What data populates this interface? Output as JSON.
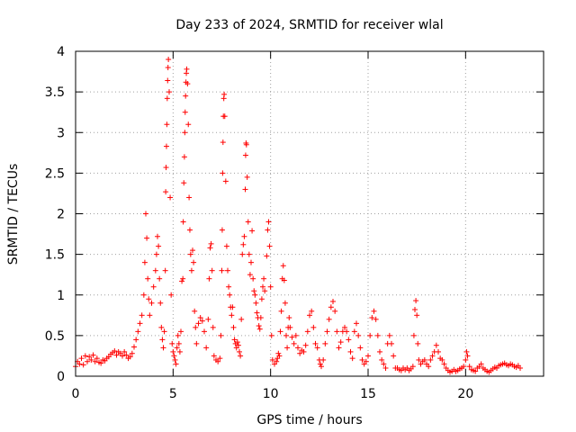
{
  "chart_data": {
    "type": "scatter",
    "title": "Day 233 of 2024, SRMTID for receiver wlal",
    "xlabel": "GPS time / hours",
    "ylabel": "SRMTID / TECUs",
    "xlim": [
      0,
      24
    ],
    "ylim": [
      0,
      4
    ],
    "xticks": [
      "0",
      "5",
      "10",
      "15",
      "20"
    ],
    "yticks": [
      "0",
      "0.5",
      "1",
      "1.5",
      "2",
      "2.5",
      "3",
      "3.5",
      "4"
    ],
    "grid": true,
    "marker": "+",
    "color": "#ff0000",
    "series": [
      {
        "name": "SRMTID",
        "points": [
          [
            0.0,
            0.12
          ],
          [
            0.1,
            0.18
          ],
          [
            0.2,
            0.15
          ],
          [
            0.3,
            0.22
          ],
          [
            0.4,
            0.14
          ],
          [
            0.5,
            0.25
          ],
          [
            0.6,
            0.18
          ],
          [
            0.7,
            0.24
          ],
          [
            0.8,
            0.2
          ],
          [
            0.9,
            0.26
          ],
          [
            1.0,
            0.18
          ],
          [
            1.1,
            0.22
          ],
          [
            1.2,
            0.17
          ],
          [
            1.3,
            0.16
          ],
          [
            1.4,
            0.2
          ],
          [
            1.5,
            0.19
          ],
          [
            1.6,
            0.22
          ],
          [
            1.7,
            0.24
          ],
          [
            1.8,
            0.27
          ],
          [
            1.9,
            0.29
          ],
          [
            2.0,
            0.31
          ],
          [
            2.1,
            0.26
          ],
          [
            2.2,
            0.3
          ],
          [
            2.3,
            0.28
          ],
          [
            2.4,
            0.25
          ],
          [
            2.5,
            0.3
          ],
          [
            2.6,
            0.26
          ],
          [
            2.7,
            0.22
          ],
          [
            2.8,
            0.24
          ],
          [
            2.9,
            0.28
          ],
          [
            3.0,
            0.36
          ],
          [
            3.1,
            0.45
          ],
          [
            3.2,
            0.55
          ],
          [
            3.3,
            0.65
          ],
          [
            3.4,
            0.75
          ],
          [
            3.5,
            1.0
          ],
          [
            3.55,
            1.4
          ],
          [
            3.6,
            2.0
          ],
          [
            3.65,
            1.7
          ],
          [
            3.7,
            1.2
          ],
          [
            3.75,
            0.95
          ],
          [
            3.8,
            0.75
          ],
          [
            3.9,
            0.9
          ],
          [
            4.0,
            1.1
          ],
          [
            4.1,
            1.3
          ],
          [
            4.15,
            1.5
          ],
          [
            4.2,
            1.72
          ],
          [
            4.25,
            1.6
          ],
          [
            4.3,
            1.2
          ],
          [
            4.35,
            0.9
          ],
          [
            4.4,
            0.6
          ],
          [
            4.45,
            0.45
          ],
          [
            4.5,
            0.35
          ],
          [
            4.55,
            0.55
          ],
          [
            4.6,
            1.3
          ],
          [
            4.62,
            2.27
          ],
          [
            4.64,
            2.57
          ],
          [
            4.66,
            2.83
          ],
          [
            4.68,
            3.1
          ],
          [
            4.7,
            3.42
          ],
          [
            4.72,
            3.64
          ],
          [
            4.74,
            3.8
          ],
          [
            4.76,
            3.9
          ],
          [
            4.8,
            3.5
          ],
          [
            4.85,
            2.2
          ],
          [
            4.9,
            1.0
          ],
          [
            4.95,
            0.4
          ],
          [
            5.0,
            0.3
          ],
          [
            5.05,
            0.25
          ],
          [
            5.1,
            0.2
          ],
          [
            5.15,
            0.15
          ],
          [
            5.2,
            0.35
          ],
          [
            5.25,
            0.5
          ],
          [
            5.3,
            0.4
          ],
          [
            5.35,
            0.3
          ],
          [
            5.4,
            0.55
          ],
          [
            5.45,
            1.17
          ],
          [
            5.5,
            1.2
          ],
          [
            5.52,
            1.9
          ],
          [
            5.55,
            2.38
          ],
          [
            5.58,
            2.7
          ],
          [
            5.6,
            3.0
          ],
          [
            5.62,
            3.25
          ],
          [
            5.64,
            3.45
          ],
          [
            5.66,
            3.62
          ],
          [
            5.68,
            3.73
          ],
          [
            5.7,
            3.78
          ],
          [
            5.74,
            3.6
          ],
          [
            5.78,
            3.1
          ],
          [
            5.82,
            2.2
          ],
          [
            5.86,
            1.8
          ],
          [
            5.9,
            1.5
          ],
          [
            5.95,
            1.3
          ],
          [
            6.0,
            1.55
          ],
          [
            6.05,
            1.4
          ],
          [
            6.1,
            0.8
          ],
          [
            6.15,
            0.6
          ],
          [
            6.2,
            0.4
          ],
          [
            6.3,
            0.65
          ],
          [
            6.4,
            0.72
          ],
          [
            6.5,
            0.68
          ],
          [
            6.6,
            0.55
          ],
          [
            6.7,
            0.35
          ],
          [
            6.8,
            0.7
          ],
          [
            6.85,
            1.2
          ],
          [
            6.9,
            1.58
          ],
          [
            6.95,
            1.63
          ],
          [
            7.0,
            1.3
          ],
          [
            7.05,
            0.6
          ],
          [
            7.1,
            0.25
          ],
          [
            7.2,
            0.2
          ],
          [
            7.3,
            0.18
          ],
          [
            7.4,
            0.22
          ],
          [
            7.45,
            0.5
          ],
          [
            7.5,
            1.3
          ],
          [
            7.52,
            1.8
          ],
          [
            7.54,
            2.5
          ],
          [
            7.56,
            2.88
          ],
          [
            7.58,
            3.2
          ],
          [
            7.6,
            3.42
          ],
          [
            7.62,
            3.47
          ],
          [
            7.65,
            3.2
          ],
          [
            7.7,
            2.4
          ],
          [
            7.75,
            1.6
          ],
          [
            7.8,
            1.3
          ],
          [
            7.85,
            1.1
          ],
          [
            7.9,
            1.0
          ],
          [
            7.95,
            0.85
          ],
          [
            8.0,
            0.75
          ],
          [
            8.05,
            0.85
          ],
          [
            8.1,
            0.6
          ],
          [
            8.15,
            0.45
          ],
          [
            8.2,
            0.4
          ],
          [
            8.25,
            0.35
          ],
          [
            8.3,
            0.42
          ],
          [
            8.35,
            0.38
          ],
          [
            8.4,
            0.3
          ],
          [
            8.45,
            0.25
          ],
          [
            8.5,
            0.7
          ],
          [
            8.55,
            1.5
          ],
          [
            8.6,
            1.62
          ],
          [
            8.65,
            1.72
          ],
          [
            8.7,
            2.3
          ],
          [
            8.72,
            2.72
          ],
          [
            8.74,
            2.87
          ],
          [
            8.76,
            2.85
          ],
          [
            8.8,
            2.45
          ],
          [
            8.85,
            1.9
          ],
          [
            8.9,
            1.5
          ],
          [
            8.95,
            1.25
          ],
          [
            9.0,
            1.4
          ],
          [
            9.05,
            1.79
          ],
          [
            9.1,
            1.2
          ],
          [
            9.15,
            1.05
          ],
          [
            9.2,
            1.0
          ],
          [
            9.25,
            0.9
          ],
          [
            9.3,
            0.78
          ],
          [
            9.35,
            0.72
          ],
          [
            9.4,
            0.62
          ],
          [
            9.45,
            0.58
          ],
          [
            9.5,
            0.72
          ],
          [
            9.55,
            0.95
          ],
          [
            9.6,
            1.1
          ],
          [
            9.65,
            1.2
          ],
          [
            9.7,
            1.05
          ],
          [
            9.8,
            1.48
          ],
          [
            9.85,
            1.8
          ],
          [
            9.9,
            1.9
          ],
          [
            9.95,
            1.6
          ],
          [
            10.0,
            1.1
          ],
          [
            10.05,
            0.5
          ],
          [
            10.1,
            0.2
          ],
          [
            10.2,
            0.15
          ],
          [
            10.3,
            0.18
          ],
          [
            10.35,
            0.22
          ],
          [
            10.4,
            0.28
          ],
          [
            10.45,
            0.25
          ],
          [
            10.5,
            0.55
          ],
          [
            10.55,
            0.8
          ],
          [
            10.6,
            1.2
          ],
          [
            10.65,
            1.36
          ],
          [
            10.7,
            1.18
          ],
          [
            10.75,
            0.9
          ],
          [
            10.8,
            0.5
          ],
          [
            10.85,
            0.35
          ],
          [
            10.9,
            0.6
          ],
          [
            10.95,
            0.72
          ],
          [
            11.0,
            0.6
          ],
          [
            11.1,
            0.48
          ],
          [
            11.2,
            0.4
          ],
          [
            11.3,
            0.5
          ],
          [
            11.4,
            0.35
          ],
          [
            11.5,
            0.28
          ],
          [
            11.6,
            0.32
          ],
          [
            11.7,
            0.3
          ],
          [
            11.8,
            0.38
          ],
          [
            11.9,
            0.55
          ],
          [
            12.0,
            0.75
          ],
          [
            12.1,
            0.8
          ],
          [
            12.2,
            0.6
          ],
          [
            12.3,
            0.4
          ],
          [
            12.4,
            0.35
          ],
          [
            12.5,
            0.2
          ],
          [
            12.55,
            0.15
          ],
          [
            12.6,
            0.12
          ],
          [
            12.7,
            0.2
          ],
          [
            12.8,
            0.4
          ],
          [
            12.9,
            0.55
          ],
          [
            13.0,
            0.7
          ],
          [
            13.1,
            0.85
          ],
          [
            13.2,
            0.92
          ],
          [
            13.3,
            0.8
          ],
          [
            13.4,
            0.55
          ],
          [
            13.5,
            0.35
          ],
          [
            13.6,
            0.42
          ],
          [
            13.7,
            0.55
          ],
          [
            13.8,
            0.6
          ],
          [
            13.9,
            0.55
          ],
          [
            14.0,
            0.45
          ],
          [
            14.1,
            0.3
          ],
          [
            14.2,
            0.22
          ],
          [
            14.3,
            0.55
          ],
          [
            14.4,
            0.65
          ],
          [
            14.5,
            0.5
          ],
          [
            14.6,
            0.35
          ],
          [
            14.7,
            0.2
          ],
          [
            14.8,
            0.15
          ],
          [
            14.9,
            0.18
          ],
          [
            15.0,
            0.25
          ],
          [
            15.1,
            0.5
          ],
          [
            15.2,
            0.72
          ],
          [
            15.3,
            0.8
          ],
          [
            15.4,
            0.7
          ],
          [
            15.5,
            0.5
          ],
          [
            15.6,
            0.3
          ],
          [
            15.7,
            0.2
          ],
          [
            15.8,
            0.15
          ],
          [
            15.9,
            0.1
          ],
          [
            16.0,
            0.4
          ],
          [
            16.1,
            0.5
          ],
          [
            16.2,
            0.4
          ],
          [
            16.3,
            0.25
          ],
          [
            16.4,
            0.1
          ],
          [
            16.5,
            0.1
          ],
          [
            16.6,
            0.08
          ],
          [
            16.7,
            0.07
          ],
          [
            16.8,
            0.1
          ],
          [
            16.9,
            0.08
          ],
          [
            17.0,
            0.1
          ],
          [
            17.1,
            0.07
          ],
          [
            17.2,
            0.09
          ],
          [
            17.3,
            0.12
          ],
          [
            17.35,
            0.5
          ],
          [
            17.4,
            0.82
          ],
          [
            17.45,
            0.93
          ],
          [
            17.5,
            0.75
          ],
          [
            17.55,
            0.4
          ],
          [
            17.6,
            0.2
          ],
          [
            17.7,
            0.15
          ],
          [
            17.8,
            0.18
          ],
          [
            17.9,
            0.2
          ],
          [
            18.0,
            0.15
          ],
          [
            18.1,
            0.12
          ],
          [
            18.2,
            0.2
          ],
          [
            18.3,
            0.25
          ],
          [
            18.4,
            0.3
          ],
          [
            18.5,
            0.38
          ],
          [
            18.6,
            0.3
          ],
          [
            18.7,
            0.22
          ],
          [
            18.8,
            0.2
          ],
          [
            18.9,
            0.15
          ],
          [
            19.0,
            0.1
          ],
          [
            19.1,
            0.07
          ],
          [
            19.2,
            0.05
          ],
          [
            19.3,
            0.06
          ],
          [
            19.4,
            0.08
          ],
          [
            19.5,
            0.06
          ],
          [
            19.6,
            0.07
          ],
          [
            19.7,
            0.09
          ],
          [
            19.8,
            0.1
          ],
          [
            19.9,
            0.12
          ],
          [
            20.0,
            0.2
          ],
          [
            20.05,
            0.3
          ],
          [
            20.1,
            0.25
          ],
          [
            20.2,
            0.12
          ],
          [
            20.3,
            0.08
          ],
          [
            20.4,
            0.07
          ],
          [
            20.5,
            0.06
          ],
          [
            20.6,
            0.1
          ],
          [
            20.7,
            0.12
          ],
          [
            20.8,
            0.15
          ],
          [
            20.9,
            0.1
          ],
          [
            21.0,
            0.08
          ],
          [
            21.1,
            0.06
          ],
          [
            21.2,
            0.05
          ],
          [
            21.3,
            0.07
          ],
          [
            21.4,
            0.09
          ],
          [
            21.5,
            0.11
          ],
          [
            21.6,
            0.1
          ],
          [
            21.7,
            0.13
          ],
          [
            21.8,
            0.14
          ],
          [
            21.9,
            0.15
          ],
          [
            22.0,
            0.16
          ],
          [
            22.1,
            0.14
          ],
          [
            22.2,
            0.13
          ],
          [
            22.3,
            0.15
          ],
          [
            22.4,
            0.14
          ],
          [
            22.5,
            0.12
          ],
          [
            22.6,
            0.11
          ],
          [
            22.7,
            0.13
          ],
          [
            22.8,
            0.1
          ]
        ]
      }
    ]
  }
}
